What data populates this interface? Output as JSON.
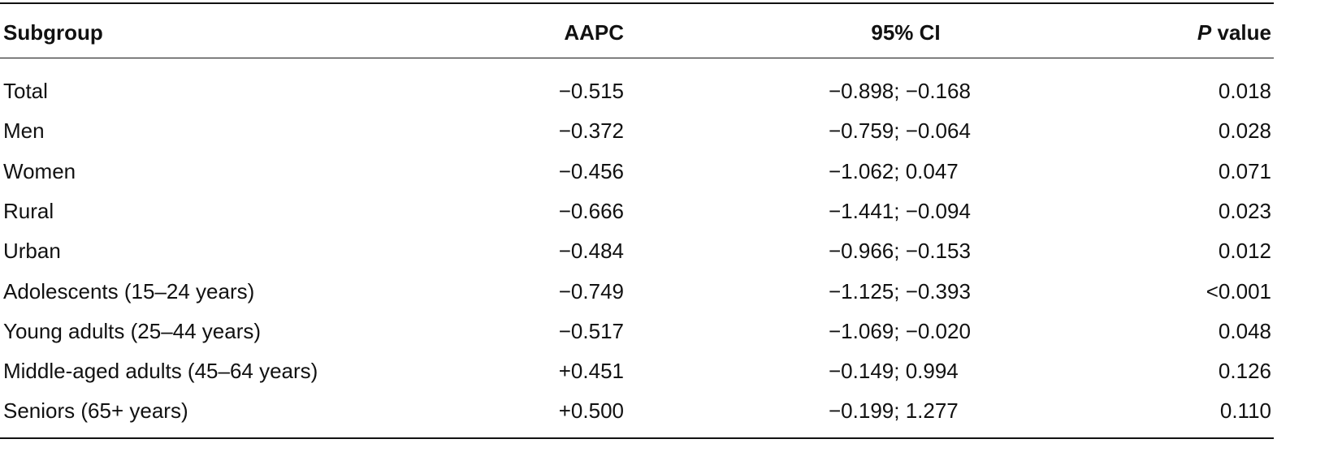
{
  "table": {
    "header": {
      "subgroup": "Subgroup",
      "aapc": "AAPC",
      "ci": "95% CI",
      "p_italic": "P",
      "p_rest": "value"
    },
    "rows": [
      [
        "Total",
        "−0.515",
        "−0.898; −0.168",
        "0.018"
      ],
      [
        "Men",
        "−0.372",
        "−0.759; −0.064",
        "0.028"
      ],
      [
        "Women",
        "−0.456",
        "−1.062; 0.047",
        "0.071"
      ],
      [
        "Rural",
        "−0.666",
        "−1.441; −0.094",
        "0.023"
      ],
      [
        "Urban",
        "−0.484",
        "−0.966; −0.153",
        "0.012"
      ],
      [
        "Adolescents (15–24 years)",
        "−0.749",
        "−1.125; −0.393",
        "<0.001"
      ],
      [
        "Young adults (25–44 years)",
        "−0.517",
        "−1.069; −0.020",
        "0.048"
      ],
      [
        "Middle-aged adults (45–64 years)",
        "+0.451",
        "−0.149; 0.994",
        "0.126"
      ],
      [
        "Seniors (65+ years)",
        "+0.500",
        "−0.199; 1.277",
        "0.110"
      ]
    ]
  }
}
